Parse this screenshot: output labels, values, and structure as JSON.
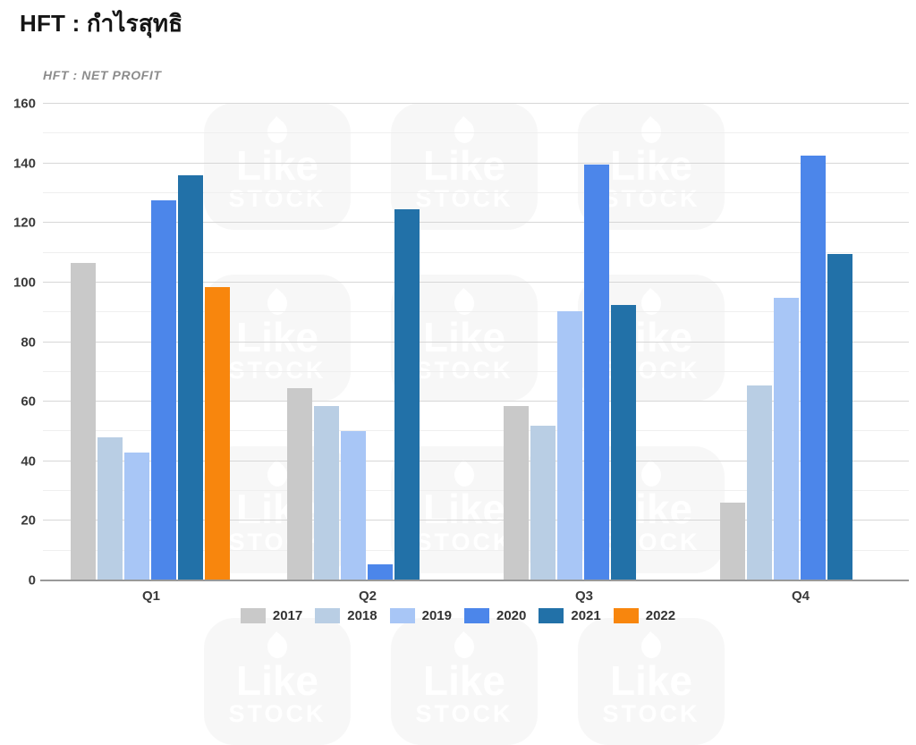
{
  "page": {
    "title": "HFT : กำไรสุทธิ"
  },
  "watermark": {
    "line1": "Like",
    "line2": "STOCK"
  },
  "chart_data": {
    "type": "bar",
    "title": "HFT : NET PROFIT",
    "categories": [
      "Q1",
      "Q2",
      "Q3",
      "Q4"
    ],
    "series": [
      {
        "name": "2017",
        "color": "#c9c9c9",
        "values": [
          106.5,
          64.5,
          58.5,
          26
        ]
      },
      {
        "name": "2018",
        "color": "#b9cee4",
        "values": [
          48,
          58.5,
          52,
          65.5
        ]
      },
      {
        "name": "2019",
        "color": "#a8c6f6",
        "values": [
          43,
          50,
          90.5,
          95
        ]
      },
      {
        "name": "2020",
        "color": "#4c86ea",
        "values": [
          127.5,
          5.5,
          139.5,
          142.5
        ]
      },
      {
        "name": "2021",
        "color": "#2271a8",
        "values": [
          136,
          124.5,
          92.5,
          109.5
        ]
      },
      {
        "name": "2022",
        "color": "#f8860d",
        "values": [
          98.5,
          null,
          null,
          null
        ]
      }
    ],
    "ylim": [
      0,
      160
    ],
    "ytick_step": 20,
    "minor_step": 10,
    "grid": "horizontal-major-and-minor",
    "legend_position": "bottom",
    "axis_label_color": "#3a3a3a"
  }
}
